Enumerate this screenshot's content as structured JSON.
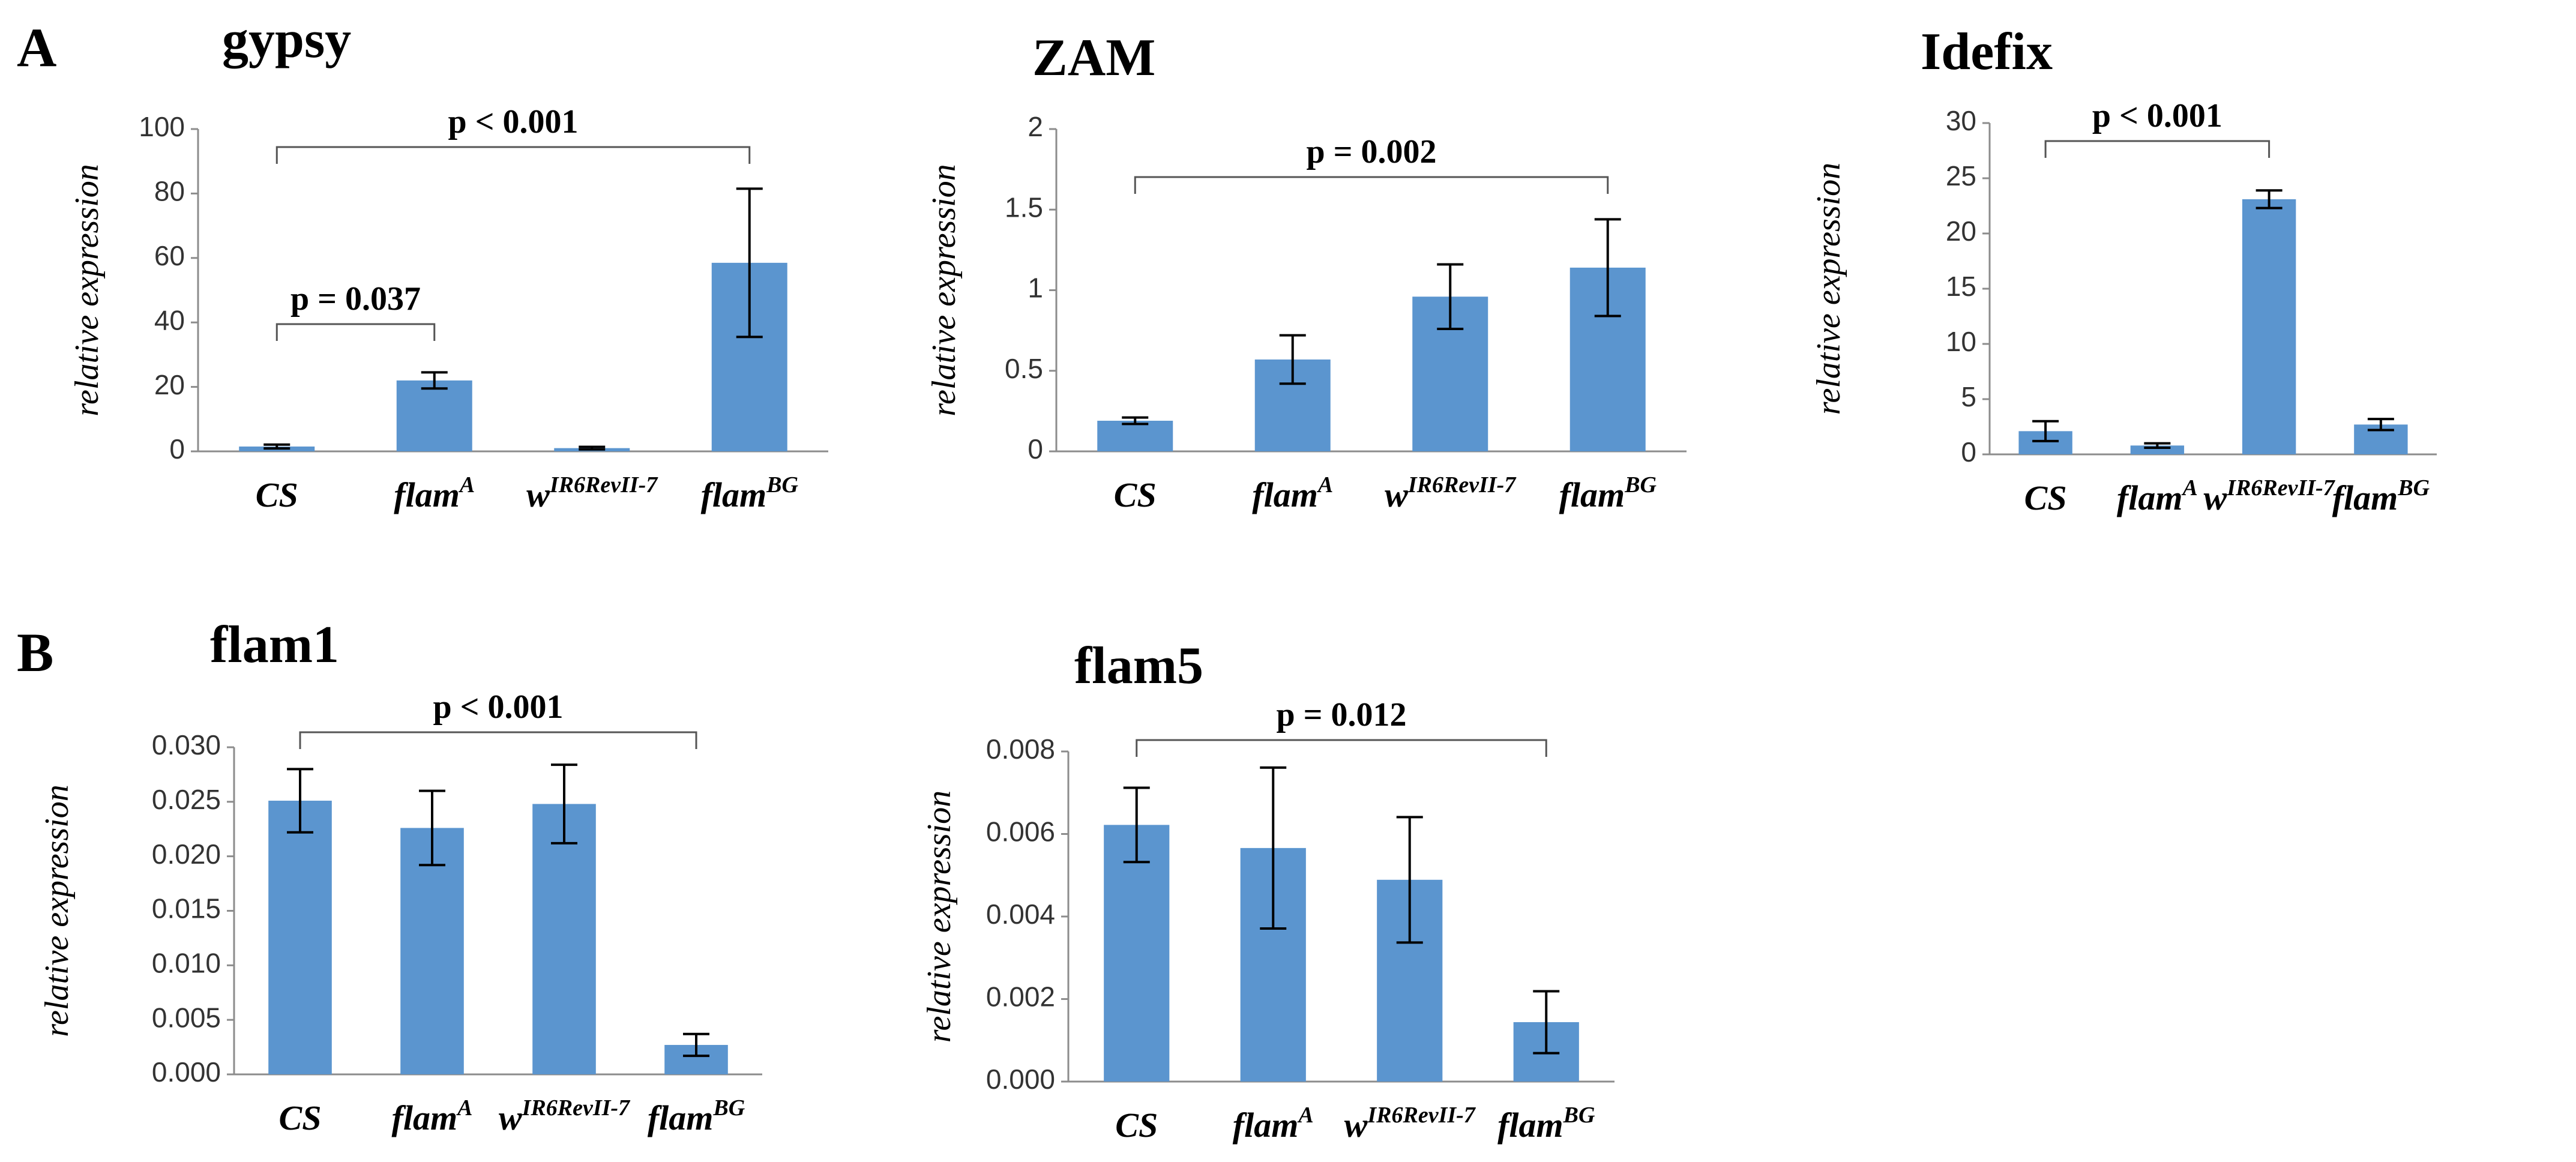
{
  "panels": {
    "A": "A",
    "B": "B"
  },
  "colors": {
    "bar": "#5b95cf",
    "error": "#000000",
    "axis": "#8c8c8c"
  },
  "chart_data": [
    {
      "id": "gypsy",
      "type": "bar",
      "title": "gypsy",
      "ylabel": "relative expression",
      "ylim": [
        0,
        100
      ],
      "yticks": [
        "0",
        "20",
        "40",
        "60",
        "80",
        "100"
      ],
      "categories": [
        {
          "base": "CS",
          "sup": ""
        },
        {
          "base": "flam",
          "sup": "A"
        },
        {
          "base": "w",
          "sup": "IR6RevII-7"
        },
        {
          "base": "flam",
          "sup": "BG"
        }
      ],
      "values": [
        1.5,
        22,
        1,
        58.5
      ],
      "errors": [
        0.6,
        2.5,
        0.4,
        23
      ],
      "comparisons": [
        {
          "from": 0,
          "to": 1,
          "label": "p = 0.037"
        },
        {
          "from": 0,
          "to": 3,
          "label": "p < 0.001"
        }
      ]
    },
    {
      "id": "zam",
      "type": "bar",
      "title": "ZAM",
      "ylabel": "relative expression",
      "ylim": [
        0,
        2
      ],
      "yticks": [
        "0",
        "0.5",
        "1",
        "1.5",
        "2"
      ],
      "categories": [
        {
          "base": "CS",
          "sup": ""
        },
        {
          "base": "flam",
          "sup": "A"
        },
        {
          "base": "w",
          "sup": "IR6RevII-7"
        },
        {
          "base": "flam",
          "sup": "BG"
        }
      ],
      "values": [
        0.19,
        0.57,
        0.96,
        1.14
      ],
      "errors": [
        0.02,
        0.15,
        0.2,
        0.3
      ],
      "comparisons": [
        {
          "from": 0,
          "to": 3,
          "label": "p = 0.002"
        }
      ]
    },
    {
      "id": "idefix",
      "type": "bar",
      "title": "Idefix",
      "ylabel": "relative expression",
      "ylim": [
        0,
        30
      ],
      "yticks": [
        "0",
        "5",
        "10",
        "15",
        "20",
        "25",
        "30"
      ],
      "categories": [
        {
          "base": "CS",
          "sup": ""
        },
        {
          "base": "flam",
          "sup": "A"
        },
        {
          "base": "w",
          "sup": "IR6RevII-7"
        },
        {
          "base": "flam",
          "sup": "BG"
        }
      ],
      "values": [
        2.1,
        0.8,
        23.1,
        2.7
      ],
      "errors": [
        0.9,
        0.2,
        0.8,
        0.5
      ],
      "comparisons": [
        {
          "from": 0,
          "to": 2,
          "label": "p < 0.001"
        }
      ]
    },
    {
      "id": "flam1",
      "type": "bar",
      "title": "flam1",
      "ylabel": "relative expression",
      "ylim": [
        0,
        0.03
      ],
      "yticks": [
        "0.000",
        "0.005",
        "0.010",
        "0.015",
        "0.020",
        "0.025",
        "0.030"
      ],
      "categories": [
        {
          "base": "CS",
          "sup": ""
        },
        {
          "base": "flam",
          "sup": "A"
        },
        {
          "base": "w",
          "sup": "IR6RevII-7"
        },
        {
          "base": "flam",
          "sup": "BG"
        }
      ],
      "values": [
        0.0251,
        0.0226,
        0.0248,
        0.0027
      ],
      "errors": [
        0.0029,
        0.0034,
        0.0036,
        0.001
      ],
      "comparisons": [
        {
          "from": 0,
          "to": 3,
          "label": "p < 0.001"
        }
      ]
    },
    {
      "id": "flam5",
      "type": "bar",
      "title": "flam5",
      "ylabel": "relative expression",
      "ylim": [
        0,
        0.008
      ],
      "yticks": [
        "0.000",
        "0.002",
        "0.004",
        "0.006",
        "0.008"
      ],
      "categories": [
        {
          "base": "CS",
          "sup": ""
        },
        {
          "base": "flam",
          "sup": "A"
        },
        {
          "base": "w",
          "sup": "IR6RevII-7"
        },
        {
          "base": "flam",
          "sup": "BG"
        }
      ],
      "values": [
        0.00622,
        0.00566,
        0.00489,
        0.00144
      ],
      "errors": [
        0.0009,
        0.00195,
        0.00152,
        0.00075
      ],
      "comparisons": [
        {
          "from": 0,
          "to": 3,
          "label": "p = 0.012"
        }
      ]
    }
  ]
}
